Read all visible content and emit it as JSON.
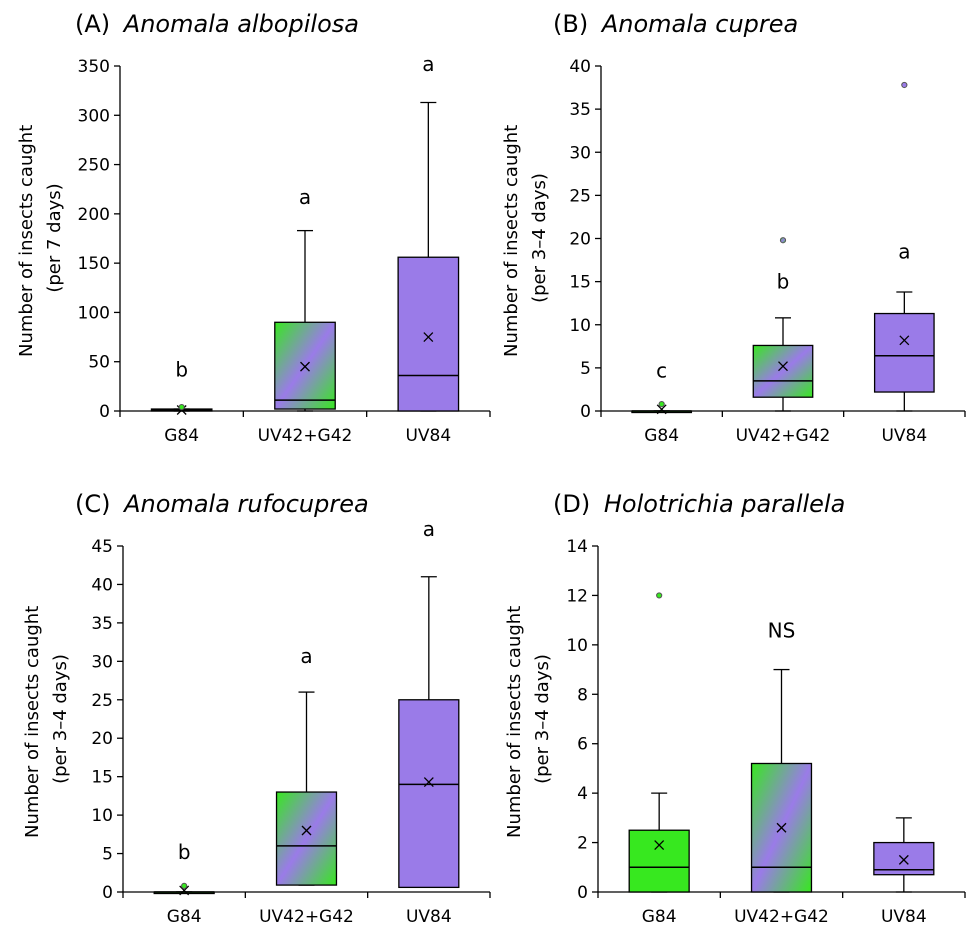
{
  "chart_data": [
    {
      "type": "box",
      "title_prefix": "(A)",
      "title_species": "Anomala albopilosa",
      "ylabel": [
        "Number of insects caught",
        "(per 7 days)"
      ],
      "ylim": [
        0,
        350
      ],
      "yticks": [
        0,
        50,
        100,
        150,
        200,
        250,
        300,
        350
      ],
      "categories": [
        "G84",
        "UV42+G42",
        "UV84"
      ],
      "fills": [
        "green",
        "gradient",
        "purple"
      ],
      "boxes": [
        {
          "min": 0,
          "q1": 0,
          "median": 1,
          "q3": 2,
          "max": 2,
          "mean": 1,
          "outliers": [
            4
          ]
        },
        {
          "min": 0,
          "q1": 2,
          "median": 11,
          "q3": 90,
          "max": 183,
          "mean": 45,
          "outliers": []
        },
        {
          "min": 0,
          "q1": 0,
          "median": 36,
          "q3": 156,
          "max": 313,
          "mean": 75,
          "outliers": []
        }
      ],
      "letters": [
        "b",
        "a",
        "a"
      ],
      "letter_values": [
        35,
        210,
        345
      ]
    },
    {
      "type": "box",
      "title_prefix": "(B)",
      "title_species": "Anomala cuprea",
      "ylabel": [
        "Number of insects caught",
        "(per 3–4 days)"
      ],
      "ylim": [
        0,
        40
      ],
      "yticks": [
        0,
        5,
        10,
        15,
        20,
        25,
        30,
        35,
        40
      ],
      "categories": [
        "G84",
        "UV42+G42",
        "UV84"
      ],
      "fills": [
        "green",
        "gradient",
        "purple"
      ],
      "boxes": [
        {
          "min": 0,
          "q1": 0,
          "median": 0,
          "q3": 0,
          "max": 0,
          "mean": 0.2,
          "outliers": [
            0.8
          ]
        },
        {
          "min": 0,
          "q1": 1.6,
          "median": 3.5,
          "q3": 7.6,
          "max": 10.8,
          "mean": 5.2,
          "outliers": [
            19.8
          ]
        },
        {
          "min": 0,
          "q1": 2.2,
          "median": 6.4,
          "q3": 11.3,
          "max": 13.8,
          "mean": 8.2,
          "outliers": [
            37.8
          ]
        }
      ],
      "letters": [
        "c",
        "b",
        "a"
      ],
      "letter_values": [
        3.9,
        14.2,
        17.7
      ]
    },
    {
      "type": "box",
      "title_prefix": "(C)",
      "title_species": "Anomala rufocuprea",
      "ylabel": [
        "Number of insects caught",
        "(per 3–4 days)"
      ],
      "ylim": [
        0,
        45
      ],
      "yticks": [
        0,
        5,
        10,
        15,
        20,
        25,
        30,
        35,
        40,
        45
      ],
      "categories": [
        "G84",
        "UV42+G42",
        "UV84"
      ],
      "fills": [
        "green",
        "gradient",
        "purple"
      ],
      "boxes": [
        {
          "min": 0,
          "q1": 0,
          "median": 0,
          "q3": 0,
          "max": 0,
          "mean": 0.2,
          "outliers": [
            0.8
          ]
        },
        {
          "min": 0.9,
          "q1": 0.9,
          "median": 6,
          "q3": 13,
          "max": 26,
          "mean": 8,
          "outliers": []
        },
        {
          "min": 0.6,
          "q1": 0.6,
          "median": 14,
          "q3": 25,
          "max": 41,
          "mean": 14.3,
          "outliers": []
        }
      ],
      "letters": [
        "b",
        "a",
        "a"
      ],
      "letter_values": [
        4.3,
        29.8,
        46.3
      ]
    },
    {
      "type": "box",
      "title_prefix": "(D)",
      "title_species": "Holotrichia parallela",
      "ylabel": [
        "Number of insects caught",
        "(per 3–4 days)"
      ],
      "ylim": [
        0,
        14
      ],
      "yticks": [
        0,
        2,
        4,
        6,
        8,
        10,
        12,
        14
      ],
      "categories": [
        "G84",
        "UV42+G42",
        "UV84"
      ],
      "fills": [
        "green",
        "gradient",
        "purple"
      ],
      "boxes": [
        {
          "min": 0,
          "q1": 0,
          "median": 1,
          "q3": 2.5,
          "max": 4,
          "mean": 1.9,
          "outliers": [
            12
          ]
        },
        {
          "min": 0,
          "q1": 0,
          "median": 1,
          "q3": 5.2,
          "max": 9,
          "mean": 2.6,
          "outliers": []
        },
        {
          "min": 0,
          "q1": 0.7,
          "median": 0.9,
          "q3": 2,
          "max": 3,
          "mean": 1.3,
          "outliers": []
        }
      ],
      "annotation": "NS",
      "annotation_value": 10.3
    }
  ]
}
